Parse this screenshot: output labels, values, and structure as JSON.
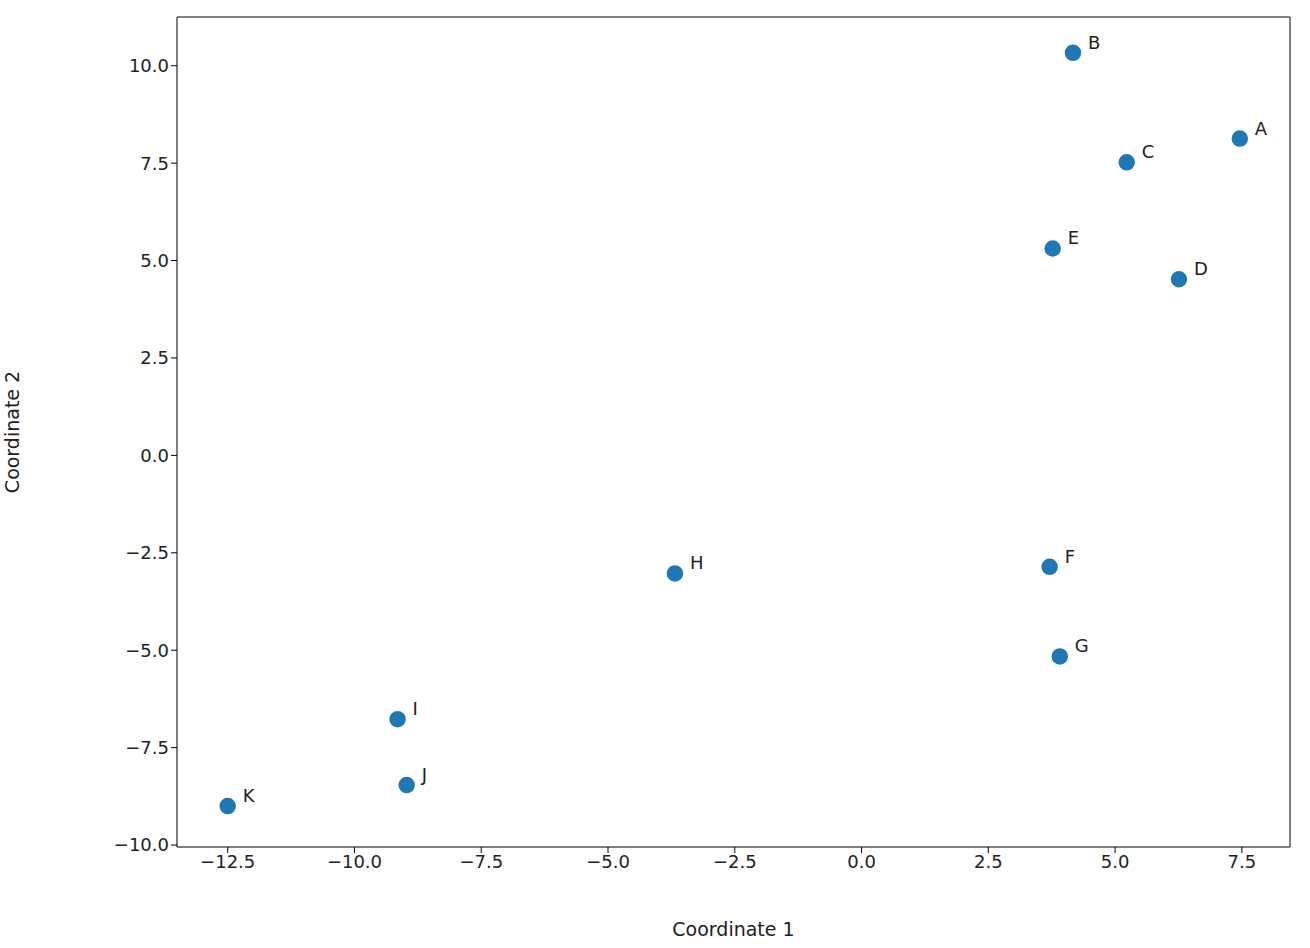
{
  "chart_data": {
    "type": "scatter",
    "x_label": "Coordinate 1",
    "y_label": "Coordinate 2",
    "labels": [
      "A",
      "B",
      "C",
      "D",
      "E",
      "F",
      "G",
      "H",
      "I",
      "J",
      "K"
    ],
    "x": [
      7.46,
      4.17,
      5.23,
      6.26,
      3.77,
      3.71,
      3.91,
      -3.68,
      -9.15,
      -8.97,
      -12.5
    ],
    "y": [
      8.13,
      10.33,
      7.52,
      4.52,
      5.31,
      -2.86,
      -5.16,
      -3.03,
      -6.77,
      -8.46,
      -9.0
    ],
    "color": "#1f77b4",
    "marker": "o",
    "xlim": [
      -13.5,
      8.45
    ],
    "ylim": [
      -10.05,
      11.25
    ],
    "xticks": [
      {
        "value": -12.5,
        "label": "−12.5"
      },
      {
        "value": -10,
        "label": "−10.0"
      },
      {
        "value": -7.5,
        "label": "−7.5"
      },
      {
        "value": -5,
        "label": "−5.0"
      },
      {
        "value": -2.5,
        "label": "−2.5"
      },
      {
        "value": 0,
        "label": "0.0"
      },
      {
        "value": 2.5,
        "label": "2.5"
      },
      {
        "value": 5,
        "label": "5.0"
      },
      {
        "value": 7.5,
        "label": "7.5"
      }
    ],
    "yticks": [
      {
        "value": -10,
        "label": "−10.0"
      },
      {
        "value": -7.5,
        "label": "−7.5"
      },
      {
        "value": -5,
        "label": "−5.0"
      },
      {
        "value": -2.5,
        "label": "−2.5"
      },
      {
        "value": 0,
        "label": "0.0"
      },
      {
        "value": 2.5,
        "label": "2.5"
      },
      {
        "value": 5,
        "label": "5.0"
      },
      {
        "value": 7.5,
        "label": "7.5"
      },
      {
        "value": 10,
        "label": "10.0"
      }
    ],
    "grid": false
  }
}
